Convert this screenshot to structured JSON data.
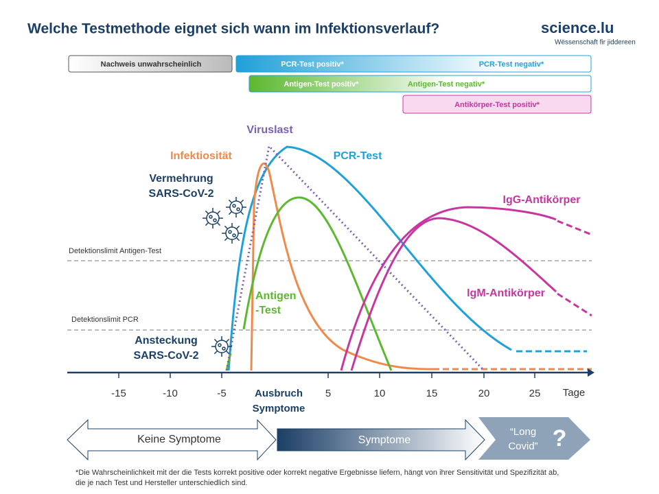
{
  "title": "Welche Testmethode eignet sich wann im Infektionsverlauf?",
  "logo": {
    "name": "science.lu",
    "tagline": "Wëssenschaft fir jiddereen"
  },
  "test_bars": [
    {
      "labels": [
        "Nachweis unwahrscheinlich"
      ]
    },
    {
      "labels": [
        "PCR-Test positiv*",
        "PCR-Test negativ*"
      ]
    },
    {
      "labels": [
        "Antigen-Test positiv*",
        "Antigen-Test negativ*"
      ]
    },
    {
      "labels": [
        "Antikörper-Test positiv*"
      ]
    }
  ],
  "curve_labels": {
    "viruslast": "Viruslast",
    "infektiositaet": "Infektiosität",
    "pcr": "PCR-Test",
    "vermehrung": [
      "Vermehrung",
      "SARS-CoV-2"
    ],
    "igg": "IgG-Antikörper",
    "igm": "IgM-Antikörper",
    "antigen": [
      "Antigen",
      "-Test"
    ],
    "ansteckung": [
      "Ansteckung",
      "SARS-CoV-2"
    ]
  },
  "detection_limits": [
    "Detektionslimit  Antigen-Test",
    "Detektionslimit  PCR"
  ],
  "axis": {
    "ticks": [
      "-15",
      "-10",
      "-5",
      "5",
      "10",
      "15",
      "20",
      "25"
    ],
    "zero_label": [
      "Ausbruch",
      "Symptome"
    ],
    "unit": "Tage"
  },
  "phases": {
    "none": "Keine Symptome",
    "symptoms": "Symptome",
    "long": [
      "“Long",
      "Covid”"
    ],
    "question": "?"
  },
  "footnote": "*Die Wahrscheinlichkeit mit der die Tests korrekt positive oder korrekt negative Ergebnisse liefern, hängt von ihrer Sensitivität und Spezifizität ab, die je nach Test und Hersteller unterschiedlich sind."
}
